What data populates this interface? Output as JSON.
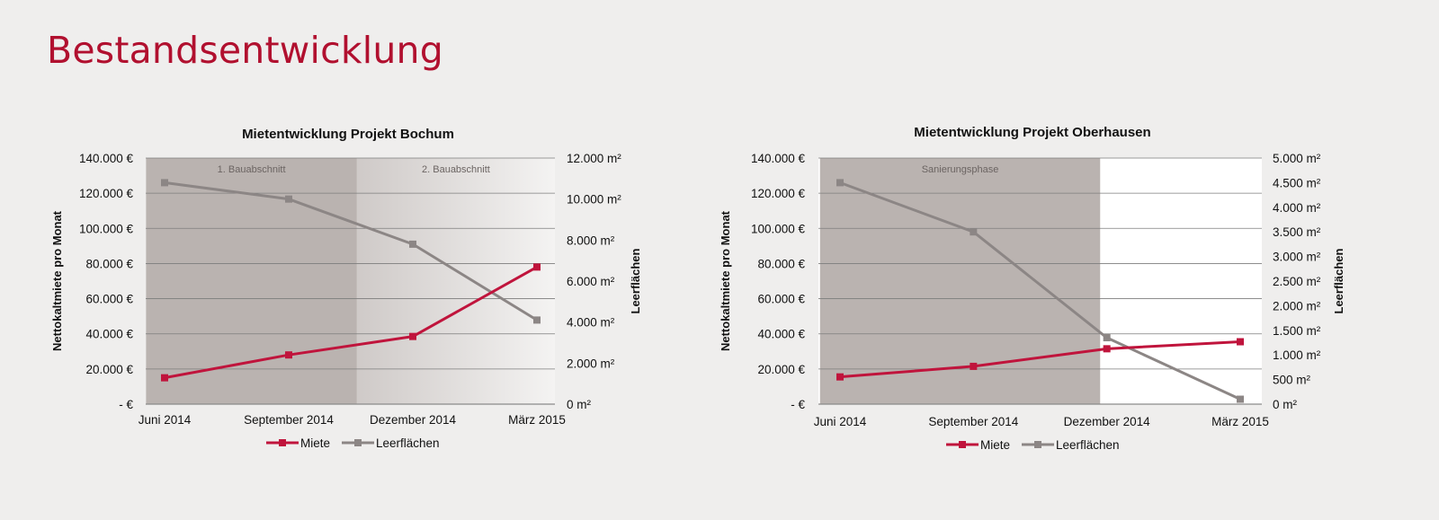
{
  "page": {
    "title": "Bestandsentwicklung",
    "accent_color": "#b1102f"
  },
  "chart_data": [
    {
      "type": "line",
      "title": "Mietentwicklung Projekt Bochum",
      "categories": [
        "Juni 2014",
        "September 2014",
        "Dezember 2014",
        "März 2015"
      ],
      "ylabel": "Nettokaltmiete pro Monat",
      "y2label": "Leerflächen",
      "ylim": [
        0,
        140000
      ],
      "y2lim": [
        0,
        12000
      ],
      "y_ticks": [
        "- €",
        "20.000 €",
        "40.000 €",
        "60.000 €",
        "80.000 €",
        "100.000 €",
        "120.000 €",
        "140.000 €"
      ],
      "y2_ticks": [
        "0 m²",
        "2.000 m²",
        "4.000 m²",
        "6.000 m²",
        "8.000 m²",
        "10.000 m²",
        "12.000 m²"
      ],
      "grid": true,
      "legend": "bottom",
      "phases": [
        {
          "label": "1. Bauabschnitt",
          "from": -0.15,
          "to": 1.55,
          "color": "#bab3b0"
        },
        {
          "label": "2. Bauabschnitt",
          "from": 1.55,
          "to": 3.5,
          "color": "#dcd9d7"
        }
      ],
      "series": [
        {
          "name": "Miete",
          "axis": "left",
          "color": "#c0143c",
          "values": [
            15000,
            28000,
            38500,
            78000
          ]
        },
        {
          "name": "Leerflächen",
          "axis": "right",
          "color": "#8c8685",
          "values": [
            10800,
            10000,
            7800,
            4100
          ]
        }
      ]
    },
    {
      "type": "line",
      "title": "Mietentwicklung Projekt Oberhausen",
      "categories": [
        "Juni 2014",
        "September 2014",
        "Dezember 2014",
        "März 2015"
      ],
      "ylabel": "Nettokaltmiete pro Monat",
      "y2label": "Leerflächen",
      "ylim": [
        0,
        140000
      ],
      "y2lim": [
        0,
        5000
      ],
      "y_ticks": [
        "- €",
        "20.000 €",
        "40.000 €",
        "60.000 €",
        "80.000 €",
        "100.000 €",
        "120.000 €",
        "140.000 €"
      ],
      "y2_ticks": [
        "0 m²",
        "500 m²",
        "1.000 m²",
        "1.500 m²",
        "2.000 m²",
        "2.500 m²",
        "3.000 m²",
        "3.500 m²",
        "4.000 m²",
        "4.500 m²",
        "5.000 m²"
      ],
      "grid": true,
      "legend": "bottom",
      "phases": [
        {
          "label": "Sanierungsphase",
          "from": -0.15,
          "to": 1.95,
          "color": "#bab3b0"
        }
      ],
      "series": [
        {
          "name": "Miete",
          "axis": "left",
          "color": "#c0143c",
          "values": [
            15500,
            21500,
            31500,
            35500
          ]
        },
        {
          "name": "Leerflächen",
          "axis": "right",
          "color": "#8c8685",
          "values": [
            4500,
            3500,
            1350,
            100
          ]
        }
      ]
    }
  ]
}
